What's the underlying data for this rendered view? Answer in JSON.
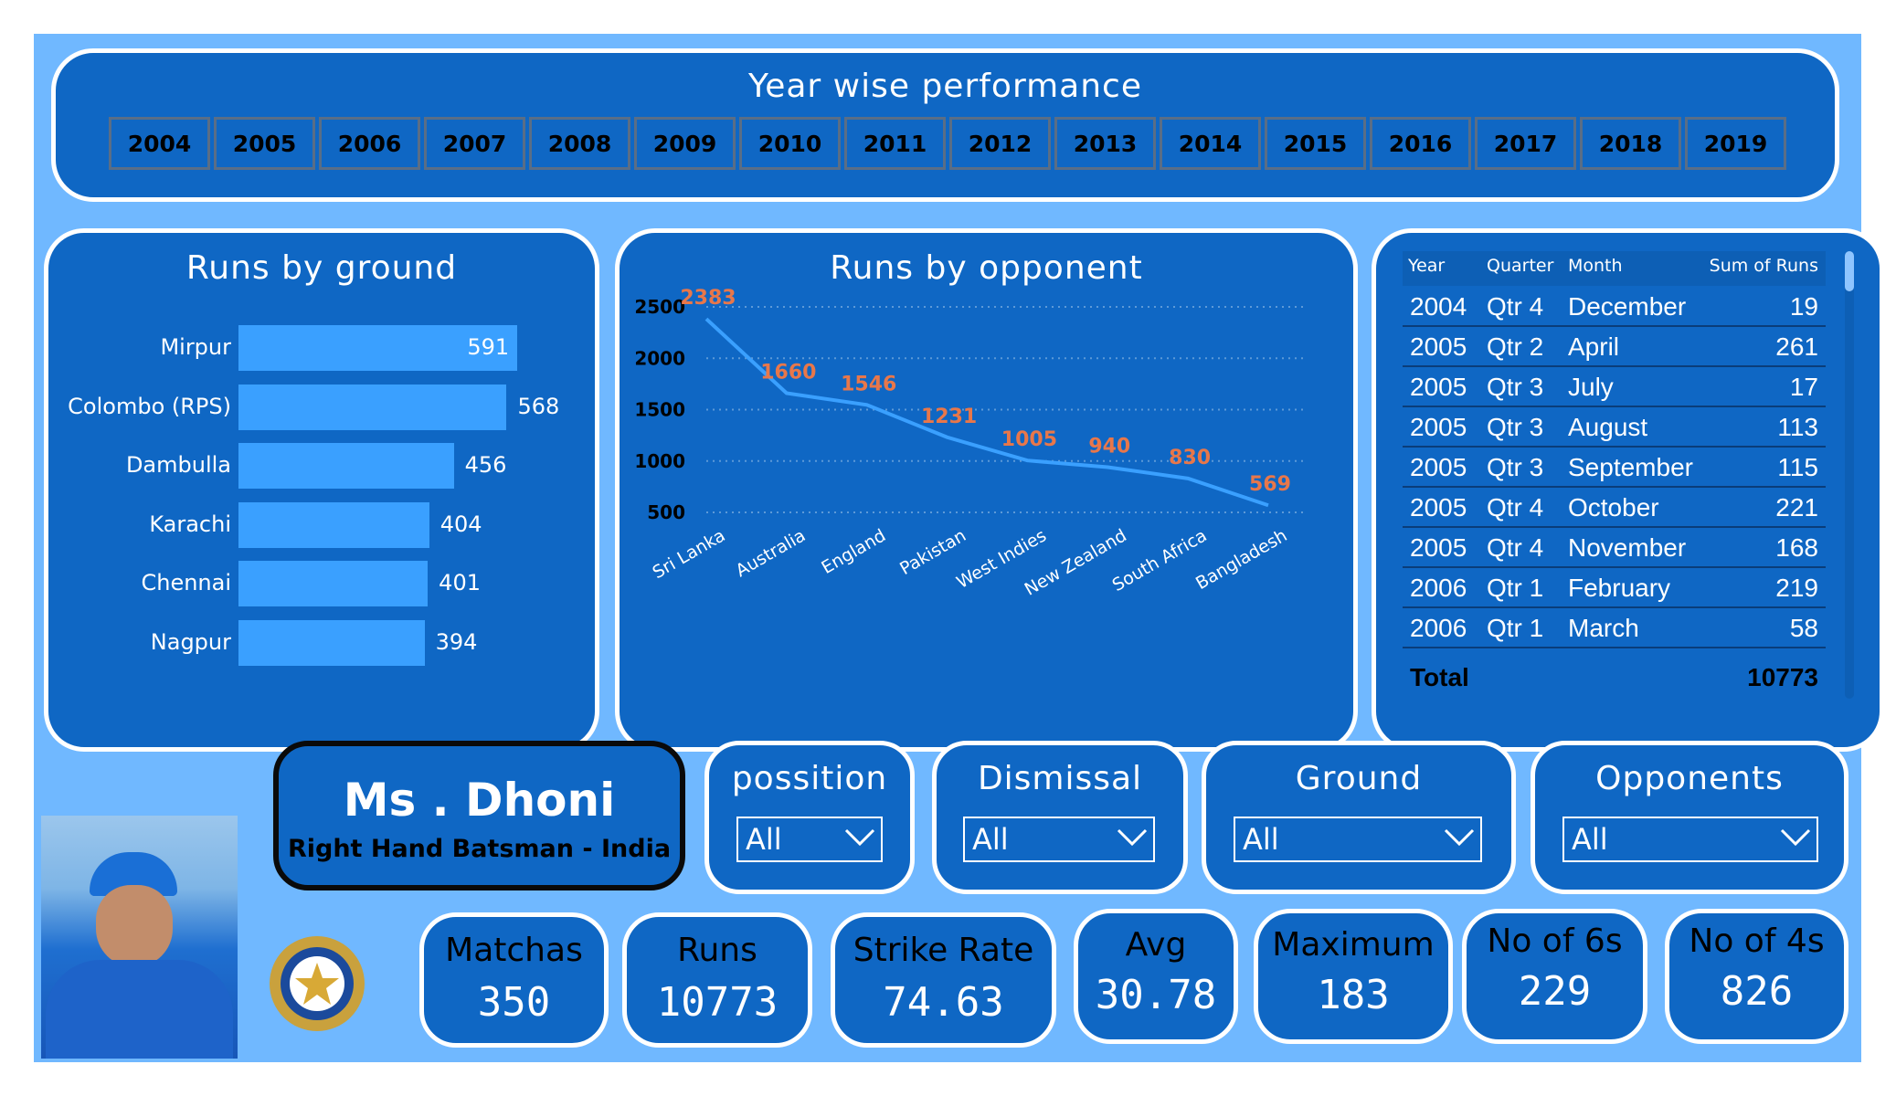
{
  "header": {
    "title": "Year wise performance",
    "years": [
      "2004",
      "2005",
      "2006",
      "2007",
      "2008",
      "2009",
      "2010",
      "2011",
      "2012",
      "2013",
      "2014",
      "2015",
      "2016",
      "2017",
      "2018",
      "2019"
    ]
  },
  "chart_data": [
    {
      "type": "bar",
      "title": "Runs by ground",
      "categories": [
        "Mirpur",
        "Colombo (RPS)",
        "Dambulla",
        "Karachi",
        "Chennai",
        "Nagpur"
      ],
      "values": [
        591,
        568,
        456,
        404,
        401,
        394
      ],
      "orientation": "horizontal",
      "color": "#3aa0ff"
    },
    {
      "type": "line",
      "title": "Runs by opponent",
      "categories": [
        "Sri Lanka",
        "Australia",
        "England",
        "Pakistan",
        "West Indies",
        "New Zealand",
        "South Africa",
        "Bangladesh"
      ],
      "values": [
        2383,
        1660,
        1546,
        1231,
        1005,
        940,
        830,
        569
      ],
      "yticks": [
        "2500",
        "2000",
        "1500",
        "1000",
        "500"
      ],
      "ylim": [
        500,
        2500
      ],
      "grid": true,
      "line_color": "#3aa0ff",
      "label_color": "#e8774a"
    }
  ],
  "table": {
    "columns": [
      "Year",
      "Quarter",
      "Month",
      "Sum of Runs"
    ],
    "rows": [
      [
        "2004",
        "Qtr 4",
        "December",
        "19"
      ],
      [
        "2005",
        "Qtr 2",
        "April",
        "261"
      ],
      [
        "2005",
        "Qtr 3",
        "July",
        "17"
      ],
      [
        "2005",
        "Qtr 3",
        "August",
        "113"
      ],
      [
        "2005",
        "Qtr 3",
        "September",
        "115"
      ],
      [
        "2005",
        "Qtr 4",
        "October",
        "221"
      ],
      [
        "2005",
        "Qtr 4",
        "November",
        "168"
      ],
      [
        "2006",
        "Qtr 1",
        "February",
        "219"
      ],
      [
        "2006",
        "Qtr 1",
        "March",
        "58"
      ]
    ],
    "total_label": "Total",
    "total_value": "10773"
  },
  "player": {
    "name": "Ms . Dhoni",
    "subtitle": "Right Hand Batsman - India"
  },
  "filters": [
    {
      "label": "possition",
      "value": "All"
    },
    {
      "label": "Dismissal",
      "value": "All"
    },
    {
      "label": "Ground",
      "value": "All"
    },
    {
      "label": "Opponents",
      "value": "All"
    }
  ],
  "kpis": [
    {
      "label": "Matchas",
      "value": "350"
    },
    {
      "label": "Runs",
      "value": "10773"
    },
    {
      "label": "Strike Rate",
      "value": "74.63"
    },
    {
      "label": "Avg",
      "value": "30.78"
    },
    {
      "label": "Maximum",
      "value": "183"
    },
    {
      "label": "No of 6s",
      "value": "229"
    },
    {
      "label": "No of 4s",
      "value": "826"
    }
  ],
  "colors": {
    "background": "#70b8ff",
    "panel": "#0f67c4",
    "bar": "#3aa0ff",
    "data_label": "#e8774a"
  }
}
